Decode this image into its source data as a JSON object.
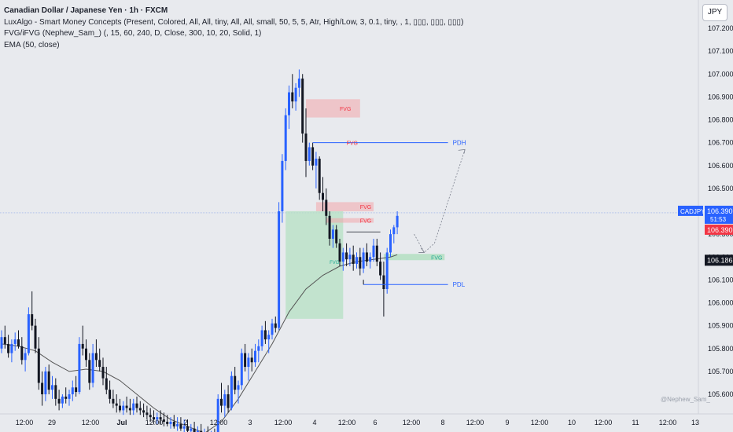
{
  "header": {
    "title": "Canadian Dollar / Japanese Yen · 1h · FXCM",
    "indicators": [
      "LuxAlgo - Smart Money Concepts (Present, Colored, All, All, tiny, All, All, small, 50, 5, 5, Atr, High/Low, 3, 0.1, tiny, , 1, ▯▯▯, ▯▯▯, ▯▯▯)",
      "FVG/iFVG (Nephew_Sam_) (, 15, 60, 240, D, Close, 300, 10, 20, Solid, 1)",
      "EMA (50, close)"
    ]
  },
  "currency_button": "JPY",
  "watermark": "@Nephew_Sam_",
  "colors": {
    "background": "#e8eaee",
    "bull": "#2962ff",
    "bear": "#131722",
    "fvg_bear": "#f2a5ac",
    "fvg_bull_zone": "#b6e0c3",
    "level_line": "#2962ff",
    "last_price_bg": "#f23645",
    "current_price_bg": "#131722",
    "ema": "#555555"
  },
  "chart_data": {
    "type": "candlestick",
    "symbol": "CADJPY",
    "ylim": [
      105.52,
      107.26
    ],
    "y_ticks": [
      "107.200",
      "107.100",
      "107.000",
      "106.900",
      "106.800",
      "106.700",
      "106.600",
      "106.500",
      "106.400",
      "106.300",
      "106.200",
      "106.100",
      "106.000",
      "105.900",
      "105.800",
      "105.700",
      "105.600"
    ],
    "x_ticks": [
      "12:00",
      "29",
      "12:00",
      "Jul",
      "12:00",
      "2",
      "12:00",
      "3",
      "12:00",
      "4",
      "12:00",
      "6",
      "12:00",
      "8",
      "12:00",
      "9",
      "12:00",
      "10",
      "12:00",
      "11",
      "12:00",
      "13"
    ],
    "symbol_label": "CADJPY",
    "last_price": "106.390",
    "countdown": "51:53",
    "last_price_2": "106.390",
    "current_price": "106.186",
    "annotations": {
      "fvg_label": "FVG",
      "pdh_label": "PDH",
      "pdl_label": "PDL",
      "pdh_value": 106.7,
      "pdl_value": 106.08
    },
    "candles": [
      [
        105.8,
        105.88,
        105.78,
        105.85
      ],
      [
        105.85,
        105.9,
        105.8,
        105.82
      ],
      [
        105.82,
        105.86,
        105.76,
        105.78
      ],
      [
        105.78,
        105.84,
        105.74,
        105.82
      ],
      [
        105.82,
        105.87,
        105.79,
        105.84
      ],
      [
        105.84,
        105.88,
        105.8,
        105.81
      ],
      [
        105.81,
        105.85,
        105.73,
        105.75
      ],
      [
        105.75,
        105.8,
        105.7,
        105.78
      ],
      [
        105.78,
        105.98,
        105.77,
        105.95
      ],
      [
        105.95,
        106.05,
        105.88,
        105.9
      ],
      [
        105.9,
        105.93,
        105.78,
        105.8
      ],
      [
        105.8,
        105.85,
        105.62,
        105.65
      ],
      [
        105.65,
        105.7,
        105.55,
        105.6
      ],
      [
        105.6,
        105.72,
        105.57,
        105.7
      ],
      [
        105.7,
        105.73,
        105.6,
        105.62
      ],
      [
        105.62,
        105.68,
        105.58,
        105.64
      ],
      [
        105.64,
        105.67,
        105.55,
        105.58
      ],
      [
        105.58,
        105.62,
        105.53,
        105.56
      ],
      [
        105.56,
        105.6,
        105.54,
        105.59
      ],
      [
        105.59,
        105.63,
        105.56,
        105.58
      ],
      [
        105.58,
        105.62,
        105.55,
        105.6
      ],
      [
        105.6,
        105.66,
        105.57,
        105.63
      ],
      [
        105.63,
        105.68,
        105.59,
        105.61
      ],
      [
        105.61,
        105.85,
        105.6,
        105.82
      ],
      [
        105.82,
        105.9,
        105.77,
        105.8
      ],
      [
        105.8,
        105.84,
        105.72,
        105.75
      ],
      [
        105.75,
        105.78,
        105.62,
        105.65
      ],
      [
        105.65,
        105.82,
        105.63,
        105.78
      ],
      [
        105.78,
        105.84,
        105.72,
        105.75
      ],
      [
        105.75,
        105.8,
        105.7,
        105.72
      ],
      [
        105.72,
        105.76,
        105.64,
        105.67
      ],
      [
        105.67,
        105.72,
        105.6,
        105.62
      ],
      [
        105.62,
        105.66,
        105.56,
        105.58
      ],
      [
        105.58,
        105.62,
        105.54,
        105.56
      ],
      [
        105.56,
        105.6,
        105.52,
        105.55
      ],
      [
        105.55,
        105.58,
        105.52,
        105.53
      ],
      [
        105.53,
        105.57,
        105.51,
        105.55
      ],
      [
        105.55,
        105.59,
        105.52,
        105.54
      ],
      [
        105.54,
        105.58,
        105.51,
        105.53
      ],
      [
        105.53,
        105.58,
        105.51,
        105.56
      ],
      [
        105.56,
        105.59,
        105.52,
        105.54
      ],
      [
        105.54,
        105.57,
        105.51,
        105.53
      ],
      [
        105.53,
        105.56,
        105.5,
        105.52
      ],
      [
        105.52,
        105.55,
        105.49,
        105.51
      ],
      [
        105.51,
        105.54,
        105.48,
        105.5
      ],
      [
        105.5,
        105.53,
        105.47,
        105.49
      ],
      [
        105.49,
        105.52,
        105.47,
        105.5
      ],
      [
        105.5,
        105.53,
        105.47,
        105.49
      ],
      [
        105.49,
        105.52,
        105.46,
        105.48
      ],
      [
        105.48,
        105.51,
        105.46,
        105.47
      ],
      [
        105.47,
        105.5,
        105.45,
        105.48
      ],
      [
        105.48,
        105.51,
        105.45,
        105.46
      ],
      [
        105.46,
        105.5,
        105.44,
        105.47
      ],
      [
        105.47,
        105.5,
        105.44,
        105.45
      ],
      [
        105.45,
        105.49,
        105.43,
        105.46
      ],
      [
        105.46,
        105.49,
        105.43,
        105.44
      ],
      [
        105.44,
        105.47,
        105.42,
        105.45
      ],
      [
        105.45,
        105.48,
        105.42,
        105.43
      ],
      [
        105.43,
        105.46,
        105.41,
        105.44
      ],
      [
        105.44,
        105.47,
        105.41,
        105.42
      ],
      [
        105.42,
        105.45,
        105.4,
        105.43
      ],
      [
        105.43,
        105.46,
        105.4,
        105.41
      ],
      [
        105.41,
        105.44,
        105.39,
        105.42
      ],
      [
        105.42,
        105.45,
        105.39,
        105.4
      ],
      [
        105.4,
        105.6,
        105.38,
        105.58
      ],
      [
        105.58,
        105.65,
        105.52,
        105.55
      ],
      [
        105.55,
        105.62,
        105.5,
        105.6
      ],
      [
        105.6,
        105.64,
        105.52,
        105.54
      ],
      [
        105.54,
        105.7,
        105.53,
        105.68
      ],
      [
        105.68,
        105.72,
        105.6,
        105.62
      ],
      [
        105.62,
        105.66,
        105.56,
        105.64
      ],
      [
        105.64,
        105.8,
        105.62,
        105.78
      ],
      [
        105.78,
        105.82,
        105.7,
        105.72
      ],
      [
        105.72,
        105.78,
        105.66,
        105.76
      ],
      [
        105.76,
        105.8,
        105.7,
        105.74
      ],
      [
        105.74,
        105.82,
        105.72,
        105.79
      ],
      [
        105.79,
        105.84,
        105.74,
        105.81
      ],
      [
        105.81,
        105.9,
        105.79,
        105.88
      ],
      [
        105.88,
        105.92,
        105.82,
        105.84
      ],
      [
        105.84,
        105.88,
        105.78,
        105.86
      ],
      [
        105.86,
        105.93,
        105.84,
        105.91
      ],
      [
        105.91,
        105.94,
        105.87,
        105.89
      ],
      [
        105.89,
        106.44,
        105.88,
        106.4
      ],
      [
        106.4,
        106.65,
        106.35,
        106.62
      ],
      [
        106.62,
        106.85,
        106.58,
        106.82
      ],
      [
        106.82,
        106.95,
        106.76,
        106.92
      ],
      [
        106.92,
        107.0,
        106.85,
        106.88
      ],
      [
        106.88,
        106.96,
        106.84,
        106.94
      ],
      [
        106.94,
        107.02,
        106.9,
        106.98
      ],
      [
        106.98,
        107.0,
        106.7,
        106.74
      ],
      [
        106.74,
        106.85,
        106.55,
        106.62
      ],
      [
        106.62,
        106.7,
        106.6,
        106.68
      ],
      [
        106.68,
        106.7,
        106.58,
        106.6
      ],
      [
        106.6,
        106.66,
        106.5,
        106.63
      ],
      [
        106.63,
        106.64,
        106.45,
        106.48
      ],
      [
        106.48,
        106.55,
        106.4,
        106.45
      ],
      [
        106.45,
        106.5,
        106.34,
        106.38
      ],
      [
        106.38,
        106.4,
        106.25,
        106.28
      ],
      [
        106.28,
        106.34,
        106.24,
        106.32
      ],
      [
        106.32,
        106.34,
        106.24,
        106.26
      ],
      [
        106.26,
        106.28,
        106.16,
        106.18
      ],
      [
        106.18,
        106.24,
        106.14,
        106.22
      ],
      [
        106.22,
        106.26,
        106.16,
        106.19
      ],
      [
        106.19,
        106.24,
        106.16,
        106.21
      ],
      [
        106.21,
        106.25,
        106.14,
        106.17
      ],
      [
        106.17,
        106.22,
        106.15,
        106.2
      ],
      [
        106.2,
        106.24,
        106.12,
        106.15
      ],
      [
        106.15,
        106.24,
        106.13,
        106.22
      ],
      [
        106.22,
        106.26,
        106.16,
        106.18
      ],
      [
        106.18,
        106.22,
        106.15,
        106.2
      ],
      [
        106.2,
        106.28,
        106.18,
        106.25
      ],
      [
        106.25,
        106.28,
        106.16,
        106.18
      ],
      [
        106.18,
        106.22,
        106.1,
        106.12
      ],
      [
        106.12,
        106.18,
        105.94,
        106.06
      ],
      [
        106.06,
        106.24,
        106.04,
        106.22
      ],
      [
        106.22,
        106.32,
        106.2,
        106.3
      ],
      [
        106.3,
        106.34,
        106.26,
        106.33
      ],
      [
        106.33,
        106.4,
        106.3,
        106.38
      ]
    ],
    "ema": [
      [
        0,
        105.82
      ],
      [
        5,
        105.81
      ],
      [
        10,
        105.79
      ],
      [
        15,
        105.74
      ],
      [
        20,
        105.7
      ],
      [
        25,
        105.71
      ],
      [
        30,
        105.7
      ],
      [
        35,
        105.66
      ],
      [
        40,
        105.6
      ],
      [
        45,
        105.54
      ],
      [
        50,
        105.49
      ],
      [
        55,
        105.46
      ],
      [
        60,
        105.43
      ],
      [
        65,
        105.48
      ],
      [
        70,
        105.58
      ],
      [
        75,
        105.7
      ],
      [
        80,
        105.82
      ],
      [
        85,
        105.96
      ],
      [
        90,
        106.06
      ],
      [
        95,
        106.12
      ],
      [
        100,
        106.16
      ],
      [
        105,
        106.18
      ],
      [
        110,
        106.19
      ],
      [
        115,
        106.2
      ],
      [
        117,
        106.21
      ]
    ]
  }
}
